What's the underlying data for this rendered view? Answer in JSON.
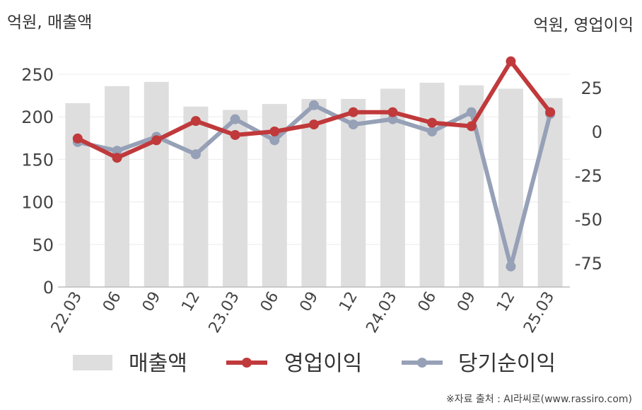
{
  "header": {
    "left_unit": "억원, 매출액",
    "right_unit": "억원, 영업이익"
  },
  "footer": {
    "source": "※자료 출처 : AI라씨로(www.rassiro.com)"
  },
  "colors": {
    "bar": "#dedede",
    "operating_profit": "#c0393b",
    "net_income": "#96a0b6",
    "axis": "#bbbbbb",
    "grid": "#ececec"
  },
  "chart_data": {
    "type": "bar+line",
    "categories": [
      "22.03",
      "06",
      "09",
      "12",
      "23.03",
      "06",
      "09",
      "12",
      "24.03",
      "06",
      "09",
      "12",
      "25.03"
    ],
    "y_left": {
      "ticks": [
        0,
        50,
        100,
        150,
        200,
        250
      ],
      "lim": [
        0,
        250
      ]
    },
    "y_right": {
      "ticks": [
        -75,
        -50,
        -25,
        0,
        25
      ],
      "lim": [
        -90,
        45
      ]
    },
    "series": [
      {
        "name": "매출액",
        "kind": "bar",
        "axis": "left",
        "values": [
          216,
          236,
          241,
          212,
          208,
          215,
          221,
          221,
          233,
          240,
          237,
          233,
          222
        ]
      },
      {
        "name": "영업이익",
        "kind": "line",
        "axis": "right",
        "values": [
          -4,
          -15,
          -5,
          6,
          -2,
          0,
          4,
          11,
          11,
          5,
          3,
          40,
          11
        ]
      },
      {
        "name": "당기순이익",
        "kind": "line",
        "axis": "right",
        "values": [
          -6,
          -11,
          -3,
          -13,
          7,
          -5,
          15,
          4,
          7,
          0,
          11,
          -77,
          10
        ]
      }
    ],
    "legend_position": "bottom",
    "grid": true
  }
}
